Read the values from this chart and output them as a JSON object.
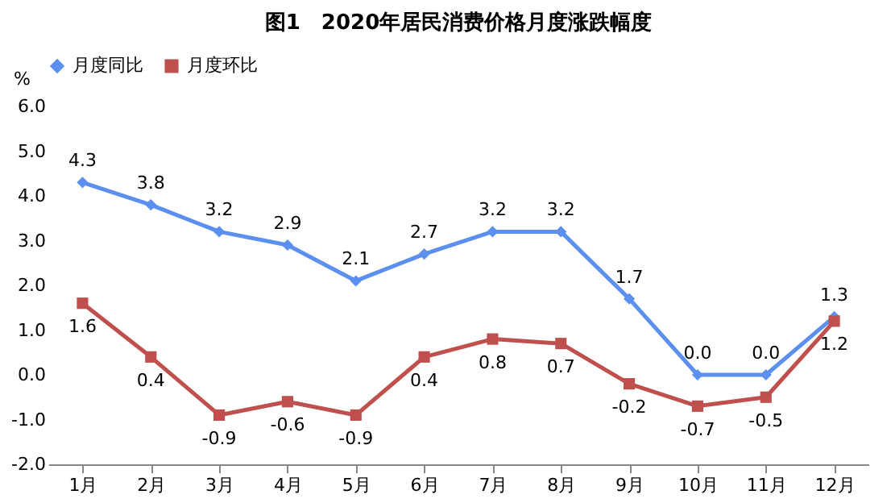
{
  "chart_data": {
    "type": "line",
    "title": "图1　2020年居民消费价格月度涨跌幅度",
    "ylabel": "%",
    "categories": [
      "1月",
      "2月",
      "3月",
      "4月",
      "5月",
      "6月",
      "7月",
      "8月",
      "9月",
      "10月",
      "11月",
      "12月"
    ],
    "series": [
      {
        "name": "月度同比",
        "color": "#5b8ff0",
        "marker": "diamond",
        "values": [
          4.3,
          3.8,
          3.2,
          2.9,
          2.1,
          2.7,
          3.2,
          3.2,
          1.7,
          0.0,
          0.0,
          1.3
        ],
        "value_labels": [
          "4.3",
          "3.8",
          "3.2",
          "2.9",
          "2.1",
          "2.7",
          "3.2",
          "3.2",
          "1.7",
          "0.0",
          "0.0",
          "1.3"
        ]
      },
      {
        "name": "月度环比",
        "color": "#c0504d",
        "marker": "square",
        "values": [
          1.6,
          0.4,
          -0.9,
          -0.6,
          -0.9,
          0.4,
          0.8,
          0.7,
          -0.2,
          -0.7,
          -0.5,
          1.2
        ],
        "value_labels": [
          "1.6",
          "0.4",
          "-0.9",
          "-0.6",
          "-0.9",
          "0.4",
          "0.8",
          "0.7",
          "-0.2",
          "-0.7",
          "-0.5",
          "1.2"
        ]
      }
    ],
    "ylim": [
      -2,
      6
    ],
    "yticks": [
      {
        "value": -2,
        "label": "-2.0"
      },
      {
        "value": -1,
        "label": "-1.0"
      },
      {
        "value": 0,
        "label": "0.0"
      },
      {
        "value": 1,
        "label": "1.0"
      },
      {
        "value": 2,
        "label": "2.0"
      },
      {
        "value": 3,
        "label": "3.0"
      },
      {
        "value": 4,
        "label": "4.0"
      },
      {
        "value": 5,
        "label": "5.0"
      },
      {
        "value": 6,
        "label": "6.0"
      }
    ],
    "grid": false,
    "legend": "top",
    "line_style": "solid"
  }
}
